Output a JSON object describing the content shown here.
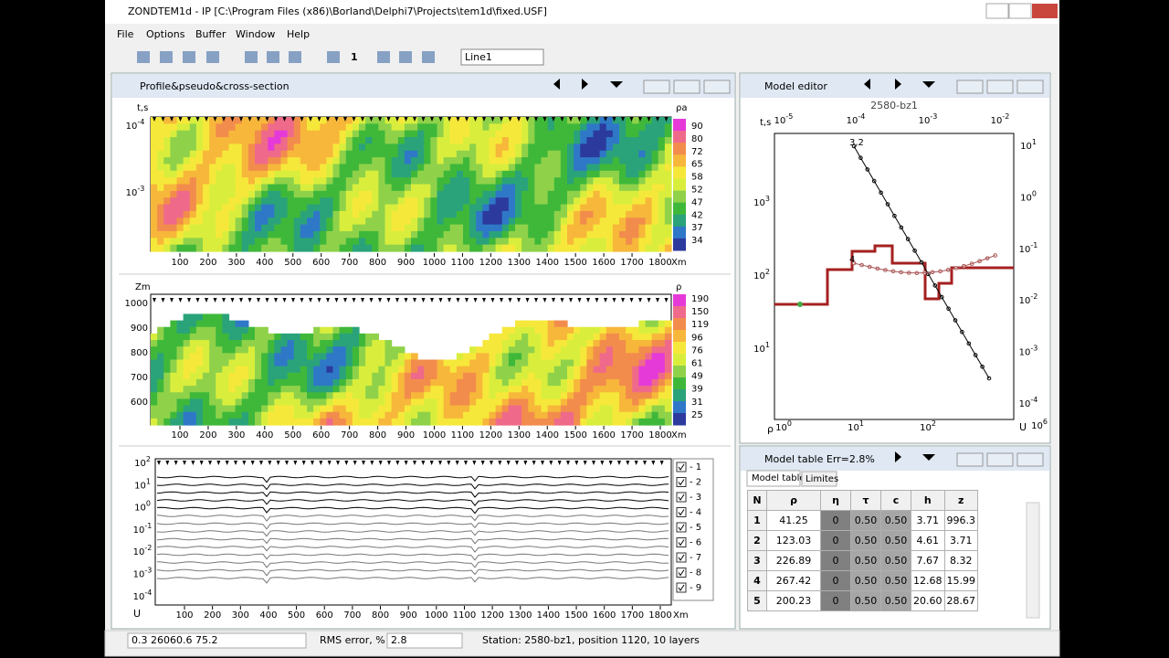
{
  "window": {
    "title": "ZONDTEM1d - IP [C:\\Program Files (x86)\\Borland\\Delphi7\\Projects\\tem1d\\fixed.USF]",
    "menu": [
      "File",
      "Options",
      "Buffer",
      "Window",
      "Help"
    ],
    "toolbar_number": "1",
    "line_select": "Line1"
  },
  "profile_window": {
    "title": "Profile&pseudo&cross-section",
    "pseudo": {
      "y_label": "t,s",
      "y_ticks": [
        {
          "base": "10",
          "exp": "-4"
        },
        {
          "base": "10",
          "exp": "-3"
        }
      ],
      "colorbar_title": "ρa",
      "colorbar": [
        90,
        80,
        72,
        65,
        58,
        52,
        47,
        42,
        37,
        34
      ],
      "x_ticks": [
        100,
        200,
        300,
        400,
        500,
        600,
        700,
        800,
        900,
        1000,
        1100,
        1200,
        1300,
        1400,
        1500,
        1600,
        1700,
        1800
      ],
      "x_unit": "Xm"
    },
    "section": {
      "y_label": "Zm",
      "y_ticks": [
        1000,
        900,
        800,
        700,
        600
      ],
      "colorbar_title": "ρ",
      "colorbar": [
        190,
        150,
        119,
        96,
        76,
        61,
        49,
        39,
        31,
        25
      ],
      "x_ticks": [
        100,
        200,
        300,
        400,
        500,
        600,
        700,
        800,
        900,
        1000,
        1100,
        1200,
        1300,
        1400,
        1500,
        1600,
        1700,
        1800
      ],
      "x_unit": "Xm"
    },
    "curves": {
      "y_label": "U",
      "y_ticks": [
        {
          "base": "10",
          "exp": "2"
        },
        {
          "base": "10",
          "exp": "1"
        },
        {
          "base": "10",
          "exp": "0"
        },
        {
          "base": "10",
          "exp": "-1"
        },
        {
          "base": "10",
          "exp": "-2"
        },
        {
          "base": "10",
          "exp": "-3"
        },
        {
          "base": "10",
          "exp": "-4"
        }
      ],
      "x_ticks": [
        100,
        200,
        300,
        400,
        500,
        600,
        700,
        800,
        900,
        1000,
        1100,
        1200,
        1300,
        1400,
        1500,
        1600,
        1700,
        1800
      ],
      "x_unit": "Xm",
      "legend": [
        "- 1",
        "- 2",
        "- 3",
        "- 4",
        "- 5",
        "- 6",
        "- 7",
        "- 8",
        "- 9"
      ]
    }
  },
  "model_editor": {
    "title": "Model editor",
    "station": "2580-bz1",
    "top_label": "t,s",
    "top_ticks": [
      {
        "base": "10",
        "exp": "-5"
      },
      {
        "base": "10",
        "exp": "-4"
      },
      {
        "base": "10",
        "exp": "-3"
      },
      {
        "base": "10",
        "exp": "-2"
      }
    ],
    "left_ticks": [
      {
        "base": "10",
        "exp": "3"
      },
      {
        "base": "10",
        "exp": "2"
      },
      {
        "base": "10",
        "exp": "1"
      }
    ],
    "left_label": "ρ",
    "bottom_ticks": [
      {
        "base": "10",
        "exp": "0"
      },
      {
        "base": "10",
        "exp": "1"
      },
      {
        "base": "10",
        "exp": "2"
      }
    ],
    "bottom_label": "U",
    "bottom_extra": {
      "base": "10",
      "exp": "6"
    },
    "right_ticks": [
      {
        "base": "10",
        "exp": "1"
      },
      {
        "base": "10",
        "exp": "0"
      },
      {
        "base": "10",
        "exp": "-1"
      },
      {
        "base": "10",
        "exp": "-2"
      },
      {
        "base": "10",
        "exp": "-3"
      },
      {
        "base": "10",
        "exp": "-4"
      }
    ],
    "annotations": [
      "3,2",
      "4"
    ]
  },
  "model_table": {
    "title": "Model table Err=2.8%",
    "tabs": [
      "Model table",
      "Limites"
    ],
    "columns": [
      "N",
      "ρ",
      "η",
      "τ",
      "c",
      "h",
      "z"
    ],
    "rows": [
      [
        "1",
        "41.25",
        "0",
        "0.50",
        "0.50",
        "3.71",
        "996.3"
      ],
      [
        "2",
        "123.03",
        "0",
        "0.50",
        "0.50",
        "4.61",
        "3.71"
      ],
      [
        "3",
        "226.89",
        "0",
        "0.50",
        "0.50",
        "7.67",
        "8.32"
      ],
      [
        "4",
        "267.42",
        "0",
        "0.50",
        "0.50",
        "12.68",
        "15.99"
      ],
      [
        "5",
        "200.23",
        "0",
        "0.50",
        "0.50",
        "20.60",
        "28.67"
      ]
    ]
  },
  "status": {
    "coords": "0.3 26060.6 75.2",
    "rms_label": "RMS error, %",
    "rms": "2.8",
    "station": "Station: 2580-bz1, position 1120, 10 layers"
  }
}
